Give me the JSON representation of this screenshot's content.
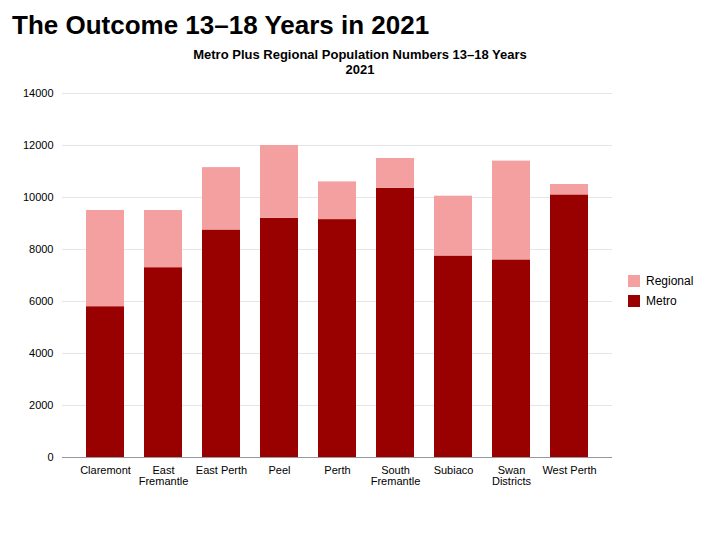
{
  "chart_data": {
    "type": "bar",
    "title": "The Outcome 13–18 Years in 2021",
    "subtitle": "Metro Plus Regional Population Numbers 13–18 Years\n2021",
    "categories": [
      "Claremont",
      "East\nFremantle",
      "East Perth",
      "Peel",
      "Perth",
      "South\nFremantle",
      "Subiaco",
      "Swan\nDistricts",
      "West Perth"
    ],
    "series": [
      {
        "name": "Metro",
        "color": "#990000",
        "values": [
          5800,
          7300,
          8750,
          9200,
          9150,
          10350,
          7750,
          7600,
          10100
        ]
      },
      {
        "name": "Regional",
        "color": "#f4a0a0",
        "values": [
          3700,
          2200,
          2400,
          2800,
          1450,
          1150,
          2300,
          3800,
          400
        ]
      }
    ],
    "stacked": true,
    "ylim": [
      0,
      14000
    ],
    "yticks": [
      0,
      2000,
      4000,
      6000,
      8000,
      10000,
      12000,
      14000
    ],
    "grid": true,
    "legend": "right"
  }
}
